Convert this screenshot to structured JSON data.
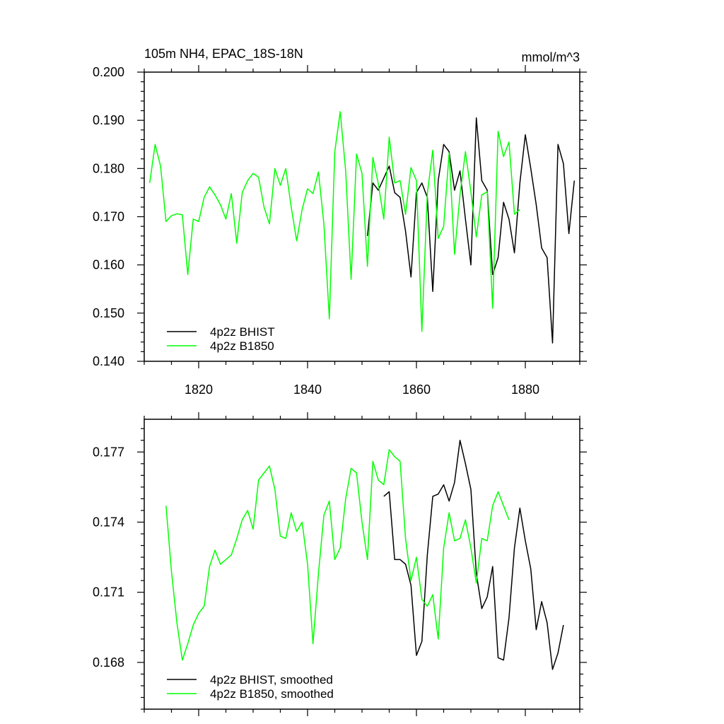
{
  "colors": {
    "bhist": "#000000",
    "b1850": "#00ff00",
    "frame": "#000000"
  },
  "chart_data": [
    {
      "type": "line",
      "title": "105m NH4, EPAC_18S-18N",
      "units": "mmol/m^3",
      "xlim": [
        1810,
        1890
      ],
      "ylim": [
        0.14,
        0.2
      ],
      "x_ticks": [
        1820,
        1840,
        1860,
        1880
      ],
      "x_tick_labels": [
        "1820",
        "1840",
        "1860",
        "1880"
      ],
      "y_ticks": [
        0.14,
        0.15,
        0.16,
        0.17,
        0.18,
        0.19,
        0.2
      ],
      "y_tick_labels": [
        "0.140",
        "0.150",
        "0.160",
        "0.170",
        "0.180",
        "0.190",
        "0.200"
      ],
      "legend_position": "bottom-left",
      "series": [
        {
          "name": "4p2z BHIST",
          "color": "#000000",
          "x": [
            1851,
            1852,
            1853,
            1854,
            1855,
            1856,
            1857,
            1858,
            1859,
            1860,
            1861,
            1862,
            1863,
            1864,
            1865,
            1866,
            1867,
            1868,
            1869,
            1870,
            1871,
            1872,
            1873,
            1874,
            1875,
            1876,
            1877,
            1878,
            1879,
            1880,
            1881,
            1882,
            1883,
            1884,
            1885,
            1886,
            1887,
            1888,
            1889
          ],
          "y": [
            0.166,
            0.177,
            0.1755,
            0.178,
            0.1805,
            0.175,
            0.174,
            0.167,
            0.1575,
            0.175,
            0.177,
            0.174,
            0.1545,
            0.1775,
            0.185,
            0.1835,
            0.1755,
            0.1795,
            0.1695,
            0.16,
            0.1905,
            0.1775,
            0.1755,
            0.158,
            0.1615,
            0.173,
            0.1695,
            0.1625,
            0.177,
            0.187,
            0.18,
            0.1725,
            0.1635,
            0.1615,
            0.1438,
            0.185,
            0.181,
            0.1665,
            0.1775
          ]
        },
        {
          "name": "4p2z B1850",
          "color": "#00ff00",
          "x": [
            1811,
            1812,
            1813,
            1814,
            1815,
            1816,
            1817,
            1818,
            1819,
            1820,
            1821,
            1822,
            1823,
            1824,
            1825,
            1826,
            1827,
            1828,
            1829,
            1830,
            1831,
            1832,
            1833,
            1834,
            1835,
            1836,
            1837,
            1838,
            1839,
            1840,
            1841,
            1842,
            1843,
            1844,
            1845,
            1846,
            1847,
            1848,
            1849,
            1850,
            1851,
            1852,
            1853,
            1854,
            1855,
            1856,
            1857,
            1858,
            1859,
            1860,
            1861,
            1862,
            1863,
            1864,
            1865,
            1866,
            1867,
            1868,
            1869,
            1870,
            1871,
            1872,
            1873,
            1874,
            1875,
            1876,
            1877,
            1878,
            1879
          ],
          "y": [
            0.177,
            0.185,
            0.1805,
            0.169,
            0.1702,
            0.1706,
            0.1704,
            0.158,
            0.1695,
            0.169,
            0.174,
            0.1762,
            0.1745,
            0.1725,
            0.1695,
            0.1748,
            0.1645,
            0.175,
            0.1775,
            0.179,
            0.1782,
            0.172,
            0.1685,
            0.18,
            0.1765,
            0.18,
            0.172,
            0.165,
            0.1715,
            0.1758,
            0.1748,
            0.1793,
            0.1685,
            0.1488,
            0.1835,
            0.1918,
            0.1795,
            0.157,
            0.183,
            0.179,
            0.1597,
            0.1823,
            0.1768,
            0.1695,
            0.1865,
            0.177,
            0.1775,
            0.1705,
            0.1802,
            0.1775,
            0.1462,
            0.1748,
            0.1838,
            0.1655,
            0.168,
            0.1832,
            0.1622,
            0.1745,
            0.1835,
            0.1752,
            0.1658,
            0.1745,
            0.1752,
            0.151,
            0.1877,
            0.1825,
            0.1855,
            0.1705,
            0.1715
          ]
        }
      ]
    },
    {
      "type": "line",
      "xlim": [
        1810,
        1890
      ],
      "ylim": [
        0.166,
        0.1784
      ],
      "x_ticks": [
        1820,
        1840,
        1860,
        1880
      ],
      "y_ticks": [
        0.168,
        0.171,
        0.174,
        0.177
      ],
      "y_tick_labels": [
        "0.168",
        "0.171",
        "0.174",
        "0.177"
      ],
      "legend_position": "bottom-left",
      "series": [
        {
          "name": "4p2z BHIST, smoothed",
          "color": "#000000",
          "x": [
            1854,
            1855,
            1856,
            1857,
            1858,
            1859,
            1860,
            1861,
            1862,
            1863,
            1864,
            1865,
            1866,
            1867,
            1868,
            1869,
            1870,
            1871,
            1872,
            1873,
            1874,
            1875,
            1876,
            1877,
            1878,
            1879,
            1880,
            1881,
            1882,
            1883,
            1884,
            1885,
            1886,
            1887
          ],
          "y": [
            0.1751,
            0.1753,
            0.1724,
            0.1724,
            0.1722,
            0.1713,
            0.1683,
            0.1689,
            0.1726,
            0.1751,
            0.1752,
            0.1756,
            0.1749,
            0.1757,
            0.1775,
            0.1765,
            0.1754,
            0.1718,
            0.1703,
            0.1708,
            0.1721,
            0.1682,
            0.1681,
            0.1699,
            0.1729,
            0.1746,
            0.1732,
            0.172,
            0.1694,
            0.1706,
            0.1697,
            0.1677,
            0.1684,
            0.1696
          ]
        },
        {
          "name": "4p2z B1850, smoothed",
          "color": "#00ff00",
          "x": [
            1814,
            1815,
            1816,
            1817,
            1818,
            1819,
            1820,
            1821,
            1822,
            1823,
            1824,
            1825,
            1826,
            1827,
            1828,
            1829,
            1830,
            1831,
            1832,
            1833,
            1834,
            1835,
            1836,
            1837,
            1838,
            1839,
            1840,
            1841,
            1842,
            1843,
            1844,
            1845,
            1846,
            1847,
            1848,
            1849,
            1850,
            1851,
            1852,
            1853,
            1854,
            1855,
            1856,
            1857,
            1858,
            1859,
            1860,
            1861,
            1862,
            1863,
            1864,
            1865,
            1866,
            1867,
            1868,
            1869,
            1870,
            1871,
            1872,
            1873,
            1874,
            1875,
            1876,
            1877
          ],
          "y": [
            0.1747,
            0.1719,
            0.1697,
            0.1681,
            0.1688,
            0.1696,
            0.1701,
            0.1704,
            0.1721,
            0.1728,
            0.1722,
            0.1724,
            0.1726,
            0.1733,
            0.1741,
            0.1745,
            0.1737,
            0.1758,
            0.1761,
            0.1764,
            0.1754,
            0.1734,
            0.1733,
            0.1744,
            0.1736,
            0.174,
            0.1722,
            0.1688,
            0.1718,
            0.1743,
            0.1749,
            0.1724,
            0.1729,
            0.175,
            0.1763,
            0.1761,
            0.174,
            0.1724,
            0.1766,
            0.1758,
            0.1756,
            0.1771,
            0.1768,
            0.1766,
            0.1733,
            0.1715,
            0.1725,
            0.1707,
            0.1704,
            0.1709,
            0.169,
            0.1729,
            0.1744,
            0.1732,
            0.1733,
            0.1741,
            0.1729,
            0.1714,
            0.1733,
            0.1732,
            0.1747,
            0.1753,
            0.1747,
            0.1741
          ]
        }
      ]
    }
  ]
}
